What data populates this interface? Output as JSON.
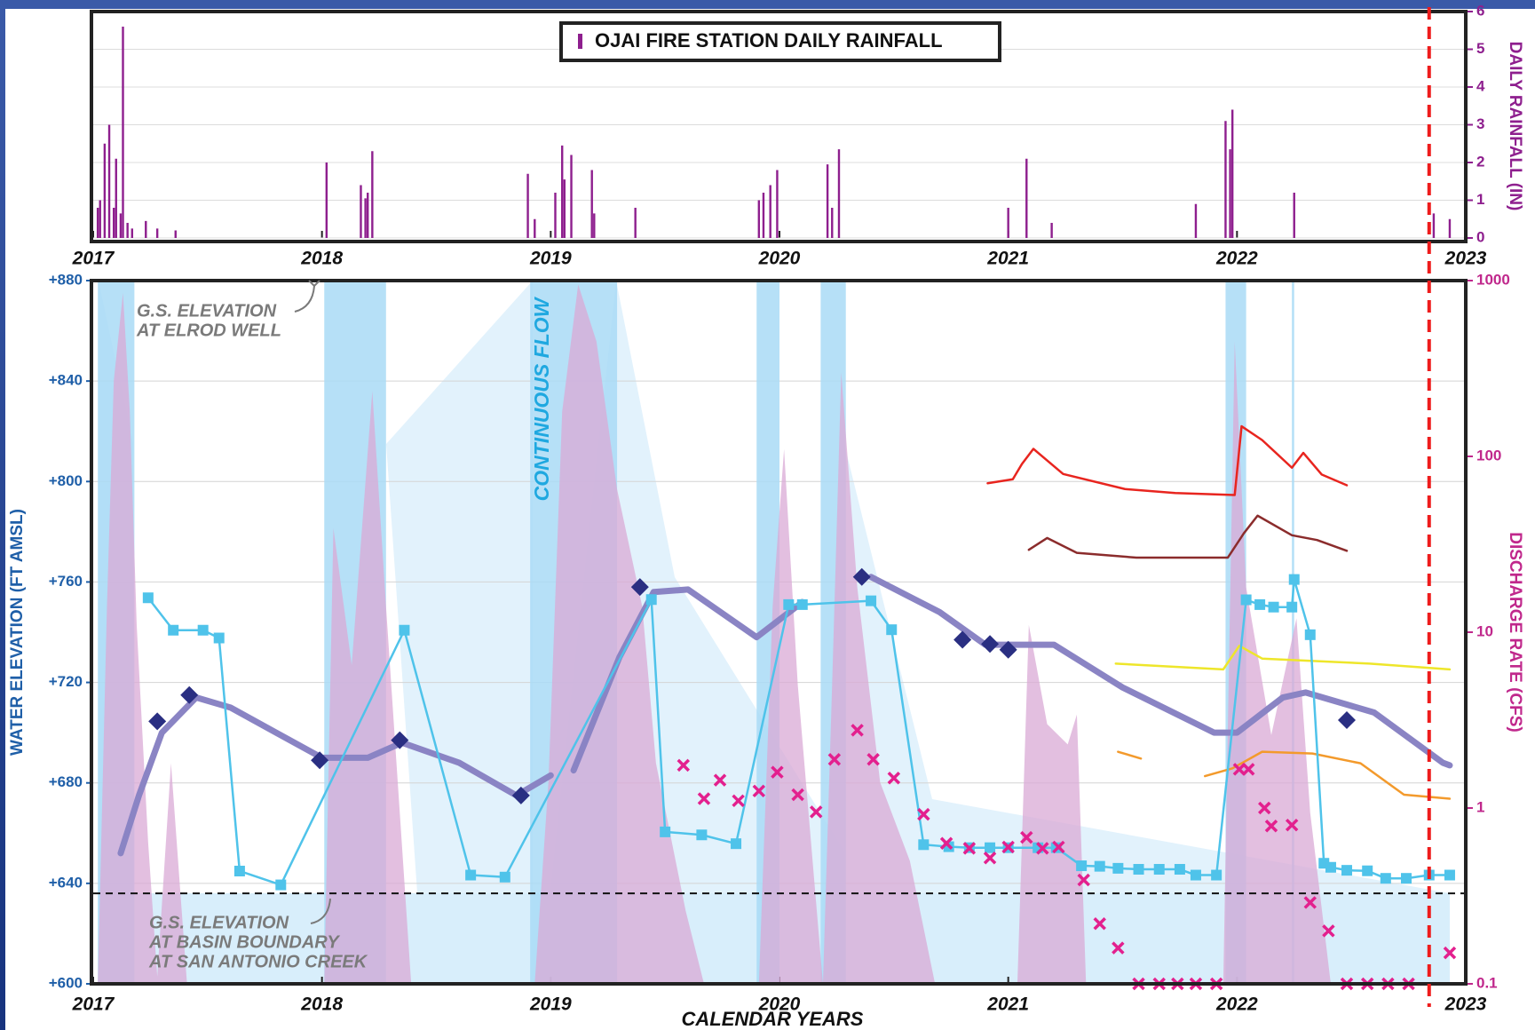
{
  "chart_data": [
    {
      "type": "bar",
      "y2label": "DAILY RAINFALL (IN)",
      "xlim": [
        2017,
        2023
      ],
      "xticks": [
        2017,
        2018,
        2019,
        2020,
        2021,
        2022,
        2023
      ],
      "y2lim": [
        0,
        6
      ],
      "y2ticks": [
        0,
        1,
        2,
        3,
        4,
        5,
        6
      ],
      "grid": true,
      "x": [
        2017.02,
        2017.03,
        2017.05,
        2017.07,
        2017.09,
        2017.1,
        2017.12,
        2017.13,
        2017.15,
        2017.17,
        2017.23,
        2017.28,
        2017.36,
        2018.02,
        2018.17,
        2018.19,
        2018.2,
        2018.22,
        2018.9,
        2018.93,
        2019.02,
        2019.05,
        2019.06,
        2019.09,
        2019.18,
        2019.19,
        2019.37,
        2019.91,
        2019.93,
        2019.96,
        2019.99,
        2020.21,
        2020.23,
        2020.26,
        2021.0,
        2021.08,
        2021.19,
        2021.82,
        2021.95,
        2021.97,
        2021.98,
        2022.25,
        2022.86,
        2022.93
      ],
      "series": [
        {
          "name": "OJAI FIRE STATION DAILY RAINFALL",
          "color": "#8e1f8e",
          "axis": "y2",
          "values": [
            0.8,
            1.0,
            2.5,
            3.0,
            0.8,
            2.1,
            0.65,
            5.6,
            0.4,
            0.25,
            0.45,
            0.25,
            0.2,
            2.0,
            1.4,
            1.05,
            1.2,
            2.3,
            1.7,
            0.5,
            1.2,
            2.45,
            1.55,
            2.2,
            1.8,
            0.65,
            0.8,
            1.0,
            1.2,
            1.4,
            1.8,
            1.95,
            0.8,
            2.35,
            0.8,
            2.1,
            0.4,
            0.9,
            3.1,
            2.35,
            3.4,
            1.2,
            0.65,
            0.5
          ]
        }
      ]
    },
    {
      "type": "line",
      "xlabel": "CALENDAR YEARS",
      "ylabel": "WATER ELEVATION (FT AMSL)",
      "y2label": "DISCHARGE RATE (CFS)",
      "xlim": [
        2017,
        2023
      ],
      "xticks": [
        2017,
        2018,
        2019,
        2020,
        2021,
        2022,
        2023
      ],
      "ylim": [
        600,
        880
      ],
      "yticks": [
        {
          "value": 600,
          "label": "+600"
        },
        {
          "value": 640,
          "label": "+640"
        },
        {
          "value": 680,
          "label": "+680"
        },
        {
          "value": 720,
          "label": "+720"
        },
        {
          "value": 760,
          "label": "+760"
        },
        {
          "value": 800,
          "label": "+800"
        },
        {
          "value": 840,
          "label": "+840"
        },
        {
          "value": 880,
          "label": "+880"
        }
      ],
      "y2lim": [
        0.1,
        1000
      ],
      "y2ticks": [
        0.1,
        1,
        10,
        100,
        1000
      ],
      "y2scale": "log",
      "grid": true,
      "flow_label": "CONTINUOUS FLOW",
      "flow_color": "#a9dbf6",
      "flow_periods": [
        [
          2017.02,
          2017.18
        ],
        [
          2018.01,
          2018.28
        ],
        [
          2018.91,
          2019.29
        ],
        [
          2019.9,
          2020.0
        ],
        [
          2020.18,
          2020.29
        ],
        [
          2021.95,
          2022.04
        ],
        [
          2022.24,
          2022.25
        ]
      ],
      "reference_line": 636,
      "annotations": [
        [
          "G.S. ELEVATION",
          "AT ELROD WELL"
        ],
        [
          "G.S. ELEVATION",
          "AT BASIN BOUNDARY",
          "AT SAN ANTONIO CREEK"
        ]
      ],
      "vline": 2022.84,
      "vline_color": "#ee1c1c",
      "series": [
        {
          "color": "#d9a9d6",
          "axis": "y2",
          "style": "area",
          "x": [
            2017.02,
            2017.06,
            2017.09,
            2017.13,
            2017.16,
            2017.19,
            2017.24,
            2017.28,
            2017.34,
            2017.41,
            2018.01,
            2018.05,
            2018.13,
            2018.22,
            2018.28,
            2018.39,
            2018.93,
            2018.99,
            2019.05,
            2019.12,
            2019.2,
            2019.29,
            2019.4,
            2019.46,
            2019.59,
            2019.67,
            2019.91,
            2019.97,
            2020.02,
            2020.08,
            2020.19,
            2020.23,
            2020.27,
            2020.34,
            2020.44,
            2020.57,
            2020.68,
            2021.04,
            2021.09,
            2021.17,
            2021.26,
            2021.3,
            2021.34,
            2021.94,
            2021.99,
            2022.04,
            2022.15,
            2022.26,
            2022.32,
            2022.41
          ],
          "values": [
            0.1,
            14,
            270,
            850,
            180,
            11,
            0.64,
            0.11,
            1.8,
            0.1,
            0.1,
            39,
            6.5,
            235,
            14,
            0.1,
            0.1,
            1.4,
            180,
            950,
            450,
            65,
            14,
            1.8,
            0.26,
            0.1,
            0.1,
            14,
            110,
            5,
            0.1,
            5,
            300,
            18,
            1.4,
            0.5,
            0.1,
            0.1,
            11,
            3.0,
            2.3,
            3.4,
            0.1,
            0.1,
            450,
            18,
            2.6,
            12,
            0.94,
            0.1
          ]
        },
        {
          "color": "#8a84c4",
          "style": "line",
          "width": 7,
          "x": [
            2017.12,
            2017.2,
            2017.3,
            2017.45,
            2017.6,
            2017.8,
            2018.0,
            2018.2,
            2018.35,
            2018.6,
            2018.85,
            2019.0,
            2019.05,
            2019.1,
            2019.3,
            2019.45,
            2019.6,
            2019.9,
            2020.1,
            2020.2,
            2020.4,
            2020.7,
            2020.9,
            2021.2,
            2021.5,
            2021.9,
            2022.0,
            2022.2,
            2022.3,
            2022.6,
            2022.9,
            2022.93
          ],
          "values": [
            652,
            675,
            700,
            714,
            710,
            700,
            690,
            690,
            696,
            688,
            675,
            683,
            null,
            685,
            730,
            756,
            757,
            738,
            752,
            null,
            762,
            748,
            735,
            735,
            718,
            700,
            700,
            714,
            716,
            708,
            688,
            687
          ]
        },
        {
          "color": "#e8251f",
          "style": "line",
          "width": 2.5,
          "x": [
            2020.91,
            2021.02,
            2021.06,
            2021.11,
            2021.24,
            2021.51,
            2021.73,
            2021.99,
            2022.02,
            2022.11,
            2022.24,
            2022.29,
            2022.37,
            2022.48
          ],
          "values": [
            799.3,
            800.9,
            807,
            813,
            803,
            797,
            795.4,
            794.6,
            822,
            816.5,
            805.5,
            811.4,
            802.8,
            798.5
          ]
        },
        {
          "color": "#8b2c2c",
          "style": "line",
          "width": 2.5,
          "x": [
            2021.09,
            2021.17,
            2021.3,
            2021.56,
            2021.96,
            2022.03,
            2022.09,
            2022.24,
            2022.35,
            2022.48
          ],
          "values": [
            772.8,
            777.5,
            771.6,
            769.7,
            769.7,
            779.4,
            786.4,
            778.6,
            776.7,
            772.4
          ]
        },
        {
          "color": "#eee62a",
          "style": "line",
          "width": 2.5,
          "x": [
            2021.47,
            2021.94,
            2022.01,
            2022.11,
            2022.58,
            2022.93
          ],
          "values": [
            727.5,
            725.2,
            734.6,
            729.5,
            727.5,
            725.2
          ]
        },
        {
          "color": "#f39a2c",
          "style": "line",
          "width": 2.5,
          "x": [
            2021.48,
            2021.58,
            2021.7,
            2021.86,
            2021.98,
            2022.11,
            2022.33,
            2022.54,
            2022.73,
            2022.93
          ],
          "values": [
            692.4,
            689.7,
            null,
            682.7,
            685.8,
            692.4,
            691.7,
            687.8,
            675.3,
            673.7
          ]
        },
        {
          "color": "#4fc3ea",
          "style": "line+markers",
          "marker": "square",
          "width": 2.5,
          "x": [
            2017.24,
            2017.35,
            2017.48,
            2017.55,
            2017.64,
            2017.82,
            2018.36,
            2018.65,
            2018.8,
            2019.44,
            2019.5,
            2019.66,
            2019.81,
            2020.04,
            2020.1,
            2020.4,
            2020.49,
            2020.63,
            2020.74,
            2020.83,
            2020.92,
            2021.0,
            2021.13,
            2021.21,
            2021.32,
            2021.4,
            2021.48,
            2021.57,
            2021.66,
            2021.75,
            2021.82,
            2021.91,
            2022.04,
            2022.1,
            2022.16,
            2022.24,
            2022.25,
            2022.32,
            2022.38,
            2022.41,
            2022.48,
            2022.57,
            2022.65,
            2022.74,
            2022.84,
            2022.93
          ],
          "values": [
            753.7,
            740.8,
            740.8,
            737.7,
            644.9,
            639.4,
            740.8,
            643.3,
            642.5,
            753,
            660.5,
            659.3,
            655.8,
            751,
            751,
            752.5,
            741,
            655.4,
            654.6,
            654.2,
            654.2,
            654.2,
            654.2,
            654.2,
            647,
            646.8,
            646,
            645.6,
            645.6,
            645.6,
            643.3,
            643.3,
            752.9,
            751,
            750,
            750,
            761,
            739,
            648,
            646.4,
            645.2,
            645,
            642,
            642,
            643.3,
            643.3
          ]
        },
        {
          "color": "#2a2f82",
          "style": "markers",
          "marker": "diamond",
          "x": [
            2017.28,
            2017.42,
            2017.99,
            2018.34,
            2018.87,
            2019.39,
            2020.36,
            2020.8,
            2020.92,
            2021.0,
            2022.48
          ],
          "values": [
            704.5,
            715,
            689,
            697,
            675,
            758,
            762,
            737,
            735.3,
            733,
            705
          ]
        },
        {
          "color": "#e3208e",
          "style": "markers",
          "marker": "x",
          "axis": "y2",
          "x": [
            2019.58,
            2019.67,
            2019.74,
            2019.82,
            2019.91,
            2019.99,
            2020.08,
            2020.16,
            2020.24,
            2020.34,
            2020.41,
            2020.5,
            2020.63,
            2020.73,
            2020.83,
            2020.92,
            2021.0,
            2021.08,
            2021.15,
            2021.22,
            2021.33,
            2021.4,
            2021.48,
            2021.57,
            2021.66,
            2021.74,
            2021.82,
            2021.91,
            2022.01,
            2022.05,
            2022.12,
            2022.15,
            2022.24,
            2022.32,
            2022.4,
            2022.48,
            2022.57,
            2022.66,
            2022.75,
            2022.93
          ],
          "values": [
            1.75,
            1.13,
            1.44,
            1.1,
            1.25,
            1.6,
            1.19,
            0.95,
            1.89,
            2.77,
            1.89,
            1.48,
            0.92,
            0.63,
            0.59,
            0.52,
            0.6,
            0.68,
            0.59,
            0.6,
            0.39,
            0.22,
            0.16,
            0.1,
            0.1,
            0.1,
            0.1,
            0.1,
            1.66,
            1.66,
            1.0,
            0.79,
            0.8,
            0.29,
            0.2,
            0.1,
            0.1,
            0.1,
            0.1,
            0.15
          ]
        }
      ]
    }
  ]
}
